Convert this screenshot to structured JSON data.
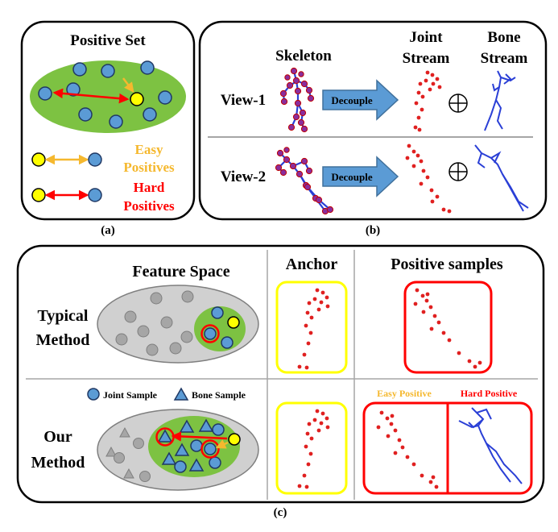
{
  "panel_a": {
    "title": "Positive Set",
    "easy_line1": "Easy",
    "easy_line2": "Positives",
    "hard_line1": "Hard",
    "hard_line2": "Positives",
    "caption": "(a)"
  },
  "panel_b": {
    "skeleton_label": "Skeleton",
    "joint_line1": "Joint",
    "joint_line2": "Stream",
    "bone_line1": "Bone",
    "bone_line2": "Stream",
    "view1": "View-1",
    "view2": "View-2",
    "decouple1": "Decouple",
    "decouple2": "Decouple",
    "oplus1": "⊕",
    "oplus2": "⊕",
    "caption": "(b)"
  },
  "panel_c": {
    "feature_space": "Feature Space",
    "anchor": "Anchor",
    "positive_samples": "Positive samples",
    "typical_line1": "Typical",
    "typical_line2": "Method",
    "our_line1": "Our",
    "our_line2": "Method",
    "legend_joint": "Joint Sample",
    "legend_bone": "Bone Sample",
    "easy_positive": "Easy Positive",
    "hard_positive": "Hard Positive",
    "caption": "(c)"
  },
  "colors": {
    "green": "#7dc242",
    "blue_dot": "#5b9bd5",
    "yellow_dot": "#ffff00",
    "easy": "#f5b82e",
    "hard": "#ff0000",
    "gray_ellipse": "#d0d0d0",
    "gray_dot": "#a6a6a6",
    "arrow_blue": "#5b9bd5",
    "skeleton_blue": "#2a3fd6",
    "joint_red": "#e02020",
    "skeleton_purple": "#8a2d9c"
  }
}
